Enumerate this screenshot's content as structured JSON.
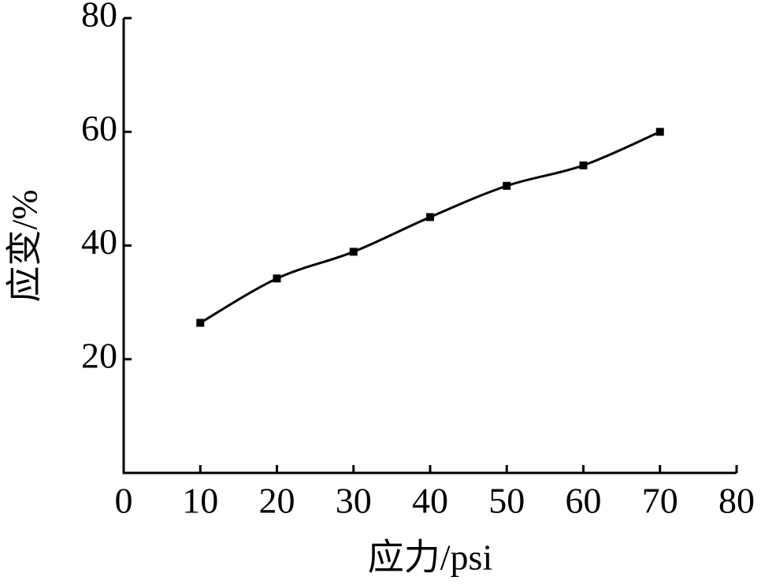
{
  "chart_data": {
    "type": "line",
    "x_label": "应力/psi",
    "y_label": "应变/%",
    "x": [
      10,
      20,
      30,
      40,
      50,
      60,
      70
    ],
    "series": [
      {
        "color": "#000000",
        "values": [
          26.4,
          34.2,
          38.9,
          45.0,
          50.5,
          54.1,
          60.0
        ]
      }
    ],
    "xlim": [
      0,
      80
    ],
    "xticks": [
      0,
      10,
      20,
      30,
      40,
      50,
      60,
      70,
      80
    ],
    "ylim": [
      0,
      80
    ],
    "yticks": [
      20,
      40,
      60,
      80
    ]
  }
}
